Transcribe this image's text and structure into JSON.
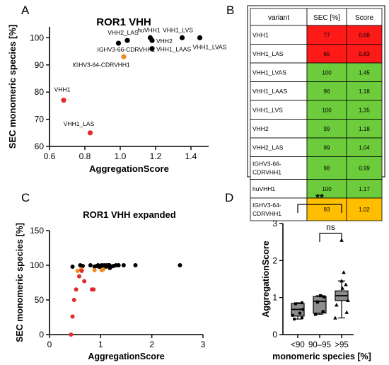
{
  "panel_letters": [
    "A",
    "B",
    "C",
    "D"
  ],
  "chart_data": [
    {
      "panel": "A",
      "type": "scatter",
      "title": "ROR1 VHH",
      "xlabel": "AggregationScore",
      "ylabel": "SEC monomeric species [%]",
      "xlim": [
        0.6,
        1.5
      ],
      "ylim": [
        60,
        104
      ],
      "xticks": [
        "0.6",
        "0.8",
        "1.0",
        "1.2",
        "1.4"
      ],
      "yticks": [
        "60",
        "70",
        "80",
        "90",
        "100"
      ],
      "grid": false,
      "colors": {
        "black": "#000000",
        "red": "#e32b2b",
        "orange": "#f08a24"
      },
      "points": [
        {
          "label": "VHH1",
          "x": 0.68,
          "y": 77,
          "color": "red"
        },
        {
          "label": "VHH1_LAS",
          "x": 0.83,
          "y": 65,
          "color": "red"
        },
        {
          "label": "VHH1_LVAS",
          "x": 1.45,
          "y": 100,
          "color": "black"
        },
        {
          "label": "VHH1_LAAS",
          "x": 1.18,
          "y": 96,
          "color": "black"
        },
        {
          "label": "VHH1_LVS",
          "x": 1.35,
          "y": 100,
          "color": "black"
        },
        {
          "label": "VHH2",
          "x": 1.18,
          "y": 99,
          "color": "black"
        },
        {
          "label": "VHH2_LAS",
          "x": 1.04,
          "y": 99,
          "color": "black"
        },
        {
          "label": "IGHV3-66-CDRVHH1",
          "x": 0.99,
          "y": 98,
          "color": "black"
        },
        {
          "label": "huVHH1",
          "x": 1.17,
          "y": 100,
          "color": "black"
        },
        {
          "label": "IGHV3-64-CDRVHH1",
          "x": 1.02,
          "y": 93,
          "color": "orange"
        }
      ]
    },
    {
      "panel": "B",
      "type": "table",
      "headers": [
        "variant",
        "SEC [%]",
        "Score"
      ],
      "rows": [
        {
          "variant": "VHH1",
          "sec": "77",
          "score": "0.68",
          "color": "#ff1a1a"
        },
        {
          "variant": "VHH1_LAS",
          "sec": "65",
          "score": "0.83",
          "color": "#ff1a1a"
        },
        {
          "variant": "VHH1_LVAS",
          "sec": "100",
          "score": "1.45",
          "color": "#6ccc3c"
        },
        {
          "variant": "VHH1_LAAS",
          "sec": "96",
          "score": "1.18",
          "color": "#6ccc3c"
        },
        {
          "variant": "VHH1_LVS",
          "sec": "100",
          "score": "1.35",
          "color": "#6ccc3c"
        },
        {
          "variant": "VHH2",
          "sec": "99",
          "score": "1.18",
          "color": "#6ccc3c"
        },
        {
          "variant": "VHH2_LAS",
          "sec": "99",
          "score": "1.04",
          "color": "#6ccc3c"
        },
        {
          "variant": "IGHV3-66-CDRVHH1",
          "variant_lines": [
            "IGHV3-66-",
            "CDRVHH1"
          ],
          "sec": "98",
          "score": "0.99",
          "color": "#6ccc3c"
        },
        {
          "variant": "huVHH1",
          "sec": "100",
          "score": "1.17",
          "color": "#6ccc3c"
        },
        {
          "variant": "IGHV3-64-CDRVHH1",
          "variant_lines": [
            "IGHV3-64-",
            "CDRVHH1"
          ],
          "sec": "93",
          "score": "1.02",
          "color": "#ffbf00"
        }
      ]
    },
    {
      "panel": "C",
      "type": "scatter",
      "title": "ROR1 VHH expanded",
      "xlabel": "AggregationScore",
      "ylabel": "SEC monomeric species [%]",
      "xlim": [
        0,
        3
      ],
      "ylim": [
        0,
        150
      ],
      "xticks": [
        "0",
        "1",
        "2",
        "3"
      ],
      "yticks": [
        "0",
        "50",
        "100",
        "150"
      ],
      "grid": false,
      "red_points": [
        [
          0.42,
          0
        ],
        [
          0.45,
          26
        ],
        [
          0.48,
          50
        ],
        [
          0.52,
          65
        ],
        [
          0.58,
          84
        ],
        [
          0.63,
          92
        ],
        [
          0.68,
          77
        ],
        [
          0.83,
          65
        ],
        [
          0.86,
          65
        ]
      ],
      "orange_points": [
        [
          0.55,
          92
        ],
        [
          0.62,
          94
        ],
        [
          0.88,
          93
        ],
        [
          1.02,
          93
        ],
        [
          1.05,
          94
        ]
      ],
      "black_points": [
        [
          0.45,
          98
        ],
        [
          0.6,
          100
        ],
        [
          0.65,
          99
        ],
        [
          0.8,
          100
        ],
        [
          0.88,
          98
        ],
        [
          0.92,
          99
        ],
        [
          0.95,
          100
        ],
        [
          0.97,
          98
        ],
        [
          0.99,
          98
        ],
        [
          1.0,
          99
        ],
        [
          1.02,
          100
        ],
        [
          1.04,
          99
        ],
        [
          1.05,
          98
        ],
        [
          1.07,
          100
        ],
        [
          1.08,
          99
        ],
        [
          1.1,
          98
        ],
        [
          1.12,
          100
        ],
        [
          1.14,
          99
        ],
        [
          1.16,
          100
        ],
        [
          1.17,
          100
        ],
        [
          1.18,
          99
        ],
        [
          1.18,
          96
        ],
        [
          1.2,
          98
        ],
        [
          1.25,
          99
        ],
        [
          1.3,
          100
        ],
        [
          1.35,
          100
        ],
        [
          1.45,
          100
        ],
        [
          1.68,
          100
        ],
        [
          2.55,
          100
        ]
      ]
    },
    {
      "panel": "D",
      "type": "box",
      "title": "",
      "xlabel": "monomeric species [%]",
      "ylabel": "AggregationScore",
      "ylim": [
        0,
        3
      ],
      "yticks": [
        "0",
        "1",
        "2",
        "3"
      ],
      "categories": [
        "<90",
        "90–95",
        ">95"
      ],
      "box_color": "#8c8c8c",
      "boxes": [
        {
          "min": 0.42,
          "q1": 0.5,
          "median": 0.68,
          "q3": 0.84,
          "max": 0.86,
          "marker": "circle",
          "points": [
            [
              -0.08,
              0.42
            ],
            [
              0.1,
              0.45
            ],
            [
              -0.12,
              0.52
            ],
            [
              0.05,
              0.58
            ],
            [
              0.12,
              0.68
            ],
            [
              -0.05,
              0.83
            ],
            [
              0.1,
              0.86
            ]
          ]
        },
        {
          "min": 0.55,
          "q1": 0.58,
          "median": 0.9,
          "q3": 1.03,
          "max": 1.05,
          "marker": "square",
          "points": [
            [
              -0.1,
              0.55
            ],
            [
              0.08,
              0.62
            ],
            [
              -0.05,
              0.88
            ],
            [
              0.1,
              1.02
            ],
            [
              0.02,
              1.05
            ]
          ]
        },
        {
          "min": 0.45,
          "q1": 0.92,
          "median": 1.05,
          "q3": 1.18,
          "max": 1.45,
          "marker": "triangle",
          "points": [
            [
              -0.15,
              0.45
            ],
            [
              0.12,
              0.6
            ],
            [
              -0.12,
              0.8
            ],
            [
              0.15,
              0.92
            ],
            [
              0.02,
              1.25
            ],
            [
              0.1,
              1.35
            ],
            [
              0.0,
              1.45
            ],
            [
              0.05,
              1.68
            ],
            [
              0.0,
              2.55
            ]
          ]
        }
      ],
      "annotations": [
        {
          "from": 0,
          "to": 2,
          "text": "**"
        },
        {
          "from": 1,
          "to": 2,
          "text": "ns"
        }
      ]
    }
  ]
}
